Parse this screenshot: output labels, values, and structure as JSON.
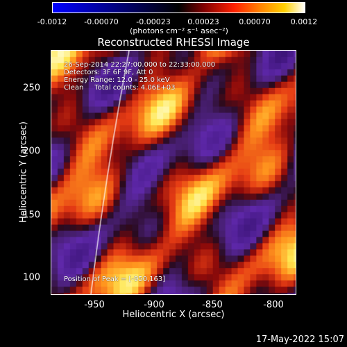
{
  "colorbar": {
    "ticks": [
      "-0.0012",
      "-0.00070",
      "-0.00023",
      "0.00023",
      "0.00070",
      "0.0012"
    ],
    "units": "(photons cm⁻² s⁻¹ asec⁻²)"
  },
  "plot": {
    "title": "Reconstructed RHESSI Image",
    "annotation": {
      "time": "26-Sep-2014 22:27:00.000 to 22:33:00.000",
      "detectors": "Detectors: 3F 6F 9F, Att 0",
      "energy": "Energy Range: 12.0 - 25.0 keV",
      "clean": "Clean     Total counts: 4.06E+03",
      "peak": "Position of Peak = [-950,163]"
    },
    "xlabel": "Heliocentric X (arcsec)",
    "ylabel": "Heliocentric Y (arcsec)",
    "xticks": [
      "-950",
      "-900",
      "-850",
      "-800"
    ],
    "yticks": [
      "250",
      "200",
      "150",
      "100"
    ]
  },
  "footer": {
    "timestamp": "17-May-2022 15:07"
  },
  "colors": {
    "background": "#000000",
    "low": "#5a1aa0",
    "mid": "#e8401a",
    "high": "#fff8a0"
  }
}
